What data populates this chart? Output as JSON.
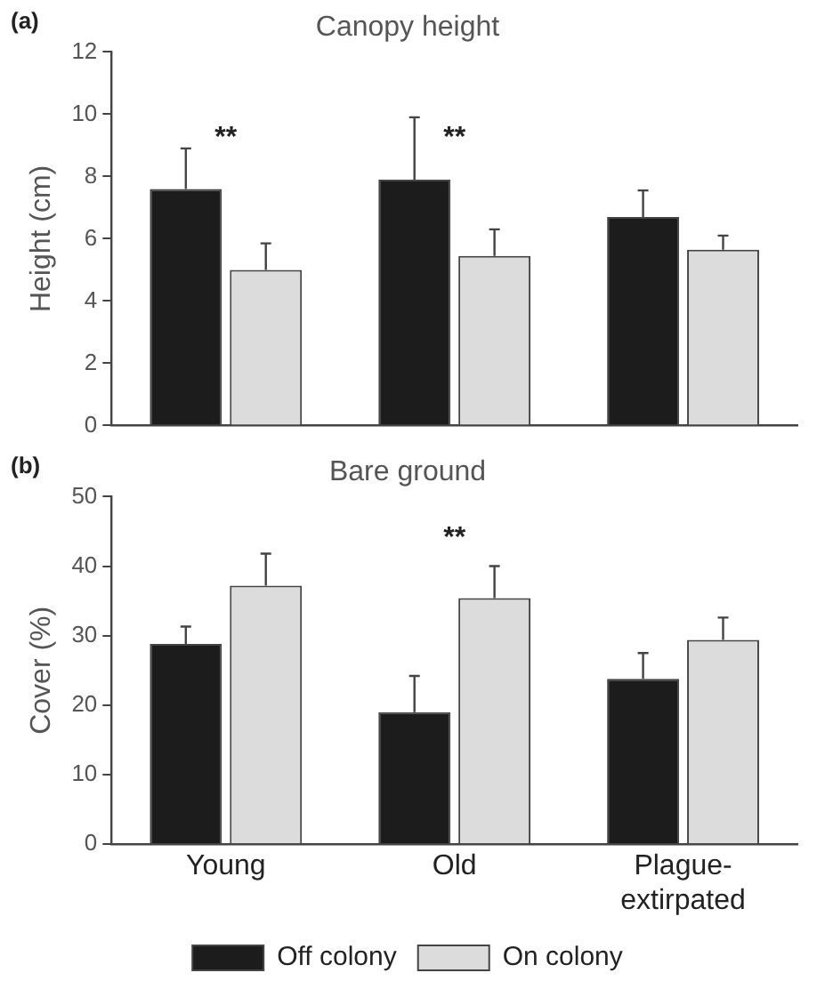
{
  "chart_data": [
    {
      "type": "bar",
      "title": "Canopy height",
      "ylabel": "Height (cm)",
      "categories": [
        null,
        null,
        null
      ],
      "series": [
        {
          "color": "#1c1c1c",
          "values": [
            7.6,
            7.9,
            6.7
          ],
          "errors": [
            [
              7.6,
              8.9
            ],
            [
              7.9,
              9.9
            ],
            [
              6.7,
              7.55
            ]
          ]
        },
        {
          "color": "#dcdcdc",
          "values": [
            5.0,
            5.45,
            5.65
          ],
          "errors": [
            [
              5.0,
              5.85
            ],
            [
              5.45,
              6.3
            ],
            [
              5.65,
              6.1
            ]
          ]
        }
      ],
      "ylim": [
        0,
        12
      ],
      "yticks": [
        0,
        2,
        4,
        6,
        8,
        10,
        12
      ],
      "grid": false,
      "legend": false,
      "tick_labels": "y",
      "annotations": [
        "(a)",
        "**",
        "**"
      ]
    },
    {
      "type": "bar",
      "title": "Bare ground",
      "ylabel": "Cover (%)",
      "categories": [
        "Young",
        "Old",
        "Plague-extirpated"
      ],
      "series": [
        {
          "name": "Off colony",
          "color": "#1c1c1c",
          "values": [
            28.8,
            19,
            23.8
          ],
          "errors": [
            [
              28.8,
              31.3
            ],
            [
              19,
              24.2
            ],
            [
              23.8,
              27.5
            ]
          ]
        },
        {
          "name": "On colony",
          "color": "#dcdcdc",
          "values": [
            37.2,
            35.4,
            29.4
          ],
          "errors": [
            [
              37.2,
              41.8
            ],
            [
              35.4,
              40
            ],
            [
              29.4,
              32.6
            ]
          ]
        }
      ],
      "ylim": [
        0,
        50
      ],
      "yticks": [
        0,
        10,
        20,
        30,
        40,
        50
      ],
      "grid": false,
      "legend": "bottom",
      "annotations": [
        "(b)",
        "**"
      ]
    }
  ]
}
